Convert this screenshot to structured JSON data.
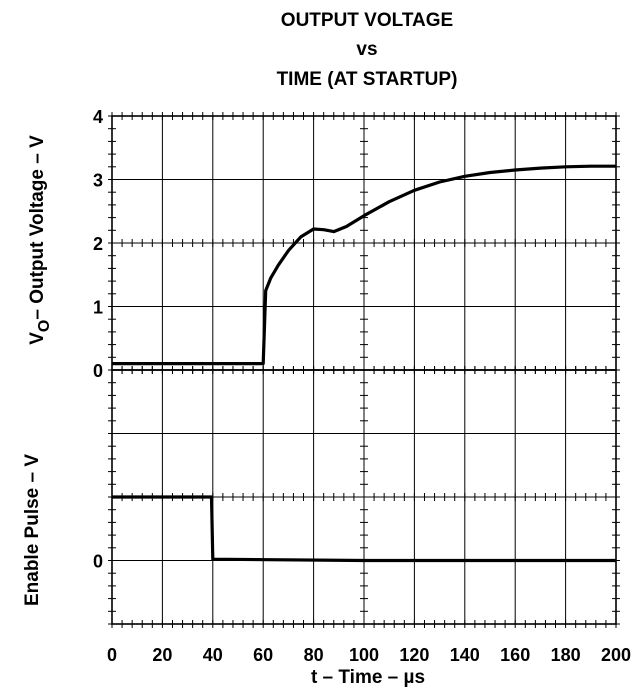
{
  "chart_data": {
    "type": "line",
    "title": [
      "OUTPUT VOLTAGE",
      "vs",
      "TIME (AT STARTUP)"
    ],
    "xlabel": "t – Time – µs",
    "x_ticks": [
      "0",
      "20",
      "40",
      "60",
      "80",
      "100",
      "120",
      "140",
      "160",
      "180",
      "200"
    ],
    "xlim": [
      0,
      200
    ],
    "grid": true,
    "panels": [
      {
        "name": "output",
        "ylabel": {
          "main": "V",
          "sub": "O",
          "rest": "– Output Voltage – V"
        },
        "ylim": [
          0,
          4
        ],
        "y_ticks": [
          {
            "value": 4,
            "label": "4"
          },
          {
            "value": 3,
            "label": "3"
          },
          {
            "value": 2,
            "label": "2"
          },
          {
            "value": 1,
            "label": "1"
          },
          {
            "value": 0,
            "label": "0"
          }
        ],
        "series": [
          {
            "x": [
              0,
              59,
              60,
              61,
              63,
              66,
              70,
              75,
              80,
              84,
              88,
              93,
              100,
              110,
              120,
              130,
              140,
              150,
              160,
              170,
              180,
              190,
              200
            ],
            "y": [
              0.1,
              0.1,
              0.1,
              1.25,
              1.45,
              1.65,
              1.88,
              2.1,
              2.22,
              2.21,
              2.18,
              2.26,
              2.43,
              2.65,
              2.83,
              2.96,
              3.05,
              3.11,
              3.15,
              3.18,
              3.2,
              3.21,
              3.21
            ]
          }
        ]
      },
      {
        "name": "enable",
        "ylabel": "Enable Pulse – V",
        "ylim": [
          -1,
          3
        ],
        "y_ticks": [
          {
            "value": 0,
            "label": "0"
          }
        ],
        "series": [
          {
            "x": [
              0,
              39.5,
              40,
              100,
              200
            ],
            "y": [
              1.0,
              1.0,
              0.02,
              0.0,
              0.0
            ]
          }
        ]
      }
    ]
  }
}
